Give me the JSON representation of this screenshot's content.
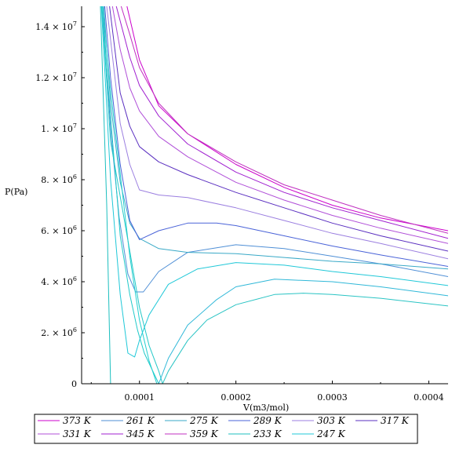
{
  "chart_data": {
    "type": "line",
    "title": "",
    "xlabel": "V(m3/mol)",
    "ylabel": "P(Pa)",
    "xlim": [
      4e-05,
      0.00042
    ],
    "ylim": [
      0,
      14800000
    ],
    "grid": false,
    "legend_position": "bottom",
    "x_ticks": [
      {
        "value": 0.0001,
        "label": "0.0001"
      },
      {
        "value": 0.0002,
        "label": "0.0002"
      },
      {
        "value": 0.0003,
        "label": "0.0003"
      },
      {
        "value": 0.0004,
        "label": "0.0004"
      }
    ],
    "y_ticks": [
      {
        "value": 0,
        "label": "0",
        "base": "",
        "exp": ""
      },
      {
        "value": 2000000,
        "label": "",
        "base": "2. × 10",
        "exp": "6"
      },
      {
        "value": 4000000,
        "label": "",
        "base": "4. × 10",
        "exp": "6"
      },
      {
        "value": 6000000,
        "label": "",
        "base": "6. × 10",
        "exp": "6"
      },
      {
        "value": 8000000,
        "label": "",
        "base": "8. × 10",
        "exp": "6"
      },
      {
        "value": 10000000,
        "label": "",
        "base": "1. × 10",
        "exp": "7"
      },
      {
        "value": 12000000,
        "label": "",
        "base": "1.2 × 10",
        "exp": "7"
      },
      {
        "value": 14000000,
        "label": "",
        "base": "1.4 × 10",
        "exp": "7"
      }
    ],
    "series": [
      {
        "name": "373 K",
        "color": "#cc00cc",
        "points": [
          [
            8.7e-05,
            14800000
          ],
          [
            0.0001,
            12700000
          ],
          [
            0.00012,
            10900000
          ],
          [
            0.00015,
            9800000
          ],
          [
            0.0002,
            8600000
          ],
          [
            0.00025,
            7700000
          ],
          [
            0.0003,
            7000000
          ],
          [
            0.00035,
            6500000
          ],
          [
            0.00042,
            6000000
          ]
        ]
      },
      {
        "name": "261 K",
        "color": "#4f8fd6",
        "points": [
          [
            6.2e-05,
            14800000
          ],
          [
            7e-05,
            10000000
          ],
          [
            7.9e-05,
            6500000
          ],
          [
            8.8e-05,
            4300000
          ],
          [
            9.6e-05,
            3600000
          ],
          [
            0.000104,
            3600000
          ],
          [
            0.00012,
            4400000
          ],
          [
            0.00015,
            5150000
          ],
          [
            0.0002,
            5450000
          ],
          [
            0.00025,
            5300000
          ],
          [
            0.0003,
            5000000
          ],
          [
            0.00035,
            4700000
          ],
          [
            0.00042,
            4200000
          ]
        ]
      },
      {
        "name": "275 K",
        "color": "#39a9c7",
        "points": [
          [
            6.3e-05,
            14800000
          ],
          [
            7e-05,
            11000000
          ],
          [
            8e-05,
            7900000
          ],
          [
            9e-05,
            6300000
          ],
          [
            0.0001,
            5700000
          ],
          [
            0.00012,
            5300000
          ],
          [
            0.00015,
            5150000
          ],
          [
            0.0002,
            5100000
          ],
          [
            0.00025,
            4950000
          ],
          [
            0.0003,
            4800000
          ],
          [
            0.00035,
            4700000
          ],
          [
            0.00042,
            4500000
          ]
        ]
      },
      {
        "name": "289 K",
        "color": "#4a63d8",
        "points": [
          [
            6.4e-05,
            14800000
          ],
          [
            7e-05,
            12000000
          ],
          [
            8e-05,
            8600000
          ],
          [
            9e-05,
            6400000
          ],
          [
            0.0001,
            5650000
          ],
          [
            0.00012,
            6000000
          ],
          [
            0.00015,
            6300000
          ],
          [
            0.00018,
            6300000
          ],
          [
            0.0002,
            6200000
          ],
          [
            0.00025,
            5800000
          ],
          [
            0.0003,
            5400000
          ],
          [
            0.00035,
            5050000
          ],
          [
            0.00042,
            4600000
          ]
        ]
      },
      {
        "name": "303 K",
        "color": "#9b7fe0",
        "points": [
          [
            6.6e-05,
            14800000
          ],
          [
            8e-05,
            10200000
          ],
          [
            9e-05,
            8600000
          ],
          [
            0.0001,
            7600000
          ],
          [
            0.00012,
            7400000
          ],
          [
            0.00015,
            7300000
          ],
          [
            0.0002,
            6900000
          ],
          [
            0.00025,
            6400000
          ],
          [
            0.0003,
            5900000
          ],
          [
            0.00035,
            5500000
          ],
          [
            0.00042,
            4900000
          ]
        ]
      },
      {
        "name": "317 K",
        "color": "#5a2fc0",
        "points": [
          [
            6.9e-05,
            14800000
          ],
          [
            8e-05,
            11400000
          ],
          [
            9e-05,
            10100000
          ],
          [
            0.0001,
            9300000
          ],
          [
            0.00012,
            8700000
          ],
          [
            0.00015,
            8200000
          ],
          [
            0.0002,
            7500000
          ],
          [
            0.00025,
            6900000
          ],
          [
            0.0003,
            6300000
          ],
          [
            0.00035,
            5800000
          ],
          [
            0.00042,
            5200000
          ]
        ]
      },
      {
        "name": "331 K",
        "color": "#b04fd8",
        "points": [
          [
            7.2e-05,
            14800000
          ],
          [
            8e-05,
            13100000
          ],
          [
            9e-05,
            11600000
          ],
          [
            0.0001,
            10700000
          ],
          [
            0.00012,
            9700000
          ],
          [
            0.00015,
            8900000
          ],
          [
            0.0002,
            7900000
          ],
          [
            0.00025,
            7200000
          ],
          [
            0.0003,
            6600000
          ],
          [
            0.00035,
            6100000
          ],
          [
            0.00042,
            5500000
          ]
        ]
      },
      {
        "name": "345 K",
        "color": "#a020d0",
        "points": [
          [
            7.6e-05,
            14800000
          ],
          [
            9e-05,
            12800000
          ],
          [
            0.0001,
            11700000
          ],
          [
            0.00012,
            10500000
          ],
          [
            0.00015,
            9400000
          ],
          [
            0.0002,
            8300000
          ],
          [
            0.00025,
            7500000
          ],
          [
            0.0003,
            6900000
          ],
          [
            0.00035,
            6400000
          ],
          [
            0.00042,
            5700000
          ]
        ]
      },
      {
        "name": "359 K",
        "color": "#c030c0",
        "points": [
          [
            8.1e-05,
            14800000
          ],
          [
            9e-05,
            13700000
          ],
          [
            0.0001,
            12400000
          ],
          [
            0.00012,
            11000000
          ],
          [
            0.00015,
            9800000
          ],
          [
            0.0002,
            8700000
          ],
          [
            0.00025,
            7800000
          ],
          [
            0.0003,
            7200000
          ],
          [
            0.00035,
            6600000
          ],
          [
            0.00042,
            5900000
          ]
        ]
      },
      {
        "name": "233 K",
        "color": "#1cbfbf",
        "points": [
          [
            5.95e-05,
            14800000
          ],
          [
            6.6e-05,
            7000000
          ],
          [
            7e-05,
            0
          ]
        ]
      },
      {
        "name": "247 K",
        "color": "#20c8d8",
        "points": [
          [
            6.05e-05,
            14800000
          ],
          [
            7e-05,
            8000000
          ],
          [
            8e-05,
            3500000
          ],
          [
            8.8e-05,
            1200000
          ],
          [
            9.5e-05,
            1050000
          ],
          [
            0.0001,
            1700000
          ],
          [
            0.00011,
            2700000
          ],
          [
            0.00013,
            3900000
          ],
          [
            0.00016,
            4500000
          ],
          [
            0.0002,
            4750000
          ],
          [
            0.00025,
            4650000
          ],
          [
            0.0003,
            4400000
          ],
          [
            0.00035,
            4200000
          ],
          [
            0.00042,
            3850000
          ]
        ]
      },
      {
        "name": "",
        "color": "#1fc9c9",
        "points": [
          [
            6.1e-05,
            14800000
          ],
          [
            7e-05,
            10500000
          ],
          [
            8e-05,
            5800000
          ],
          [
            9e-05,
            3500000
          ],
          [
            9.8e-05,
            2100000
          ],
          [
            0.000105,
            1200000
          ],
          [
            0.00012,
            0
          ]
        ]
      },
      {
        "name": "",
        "color": "#22d0d0",
        "points": [
          [
            6.2e-05,
            14800000
          ],
          [
            7e-05,
            11500000
          ],
          [
            9e-05,
            5000000
          ],
          [
            0.0001,
            2500000
          ],
          [
            0.00011,
            900000
          ],
          [
            0.000118,
            0
          ]
        ]
      },
      {
        "name": "",
        "color": "#25c8c8",
        "points": [
          [
            6.1e-05,
            14800000
          ],
          [
            7e-05,
            9500000
          ],
          [
            9e-05,
            5200000
          ],
          [
            0.0001,
            3000000
          ],
          [
            0.00011,
            1500000
          ],
          [
            0.00012,
            500000
          ],
          [
            0.000124,
            0
          ]
        ]
      },
      {
        "name": "",
        "color": "#2ac4c4",
        "points": [
          [
            7.1e-05,
            0
          ],
          [
            0.0001,
            0
          ],
          [
            0.000124,
            0
          ],
          [
            0.00013,
            500000
          ],
          [
            0.00015,
            1700000
          ],
          [
            0.00017,
            2500000
          ],
          [
            0.0002,
            3100000
          ],
          [
            0.00024,
            3500000
          ],
          [
            0.00027,
            3550000
          ],
          [
            0.0003,
            3500000
          ],
          [
            0.00035,
            3350000
          ],
          [
            0.00042,
            3050000
          ]
        ]
      },
      {
        "name": "",
        "color": "#30b8d8",
        "points": [
          [
            0.00012,
            0
          ],
          [
            0.00013,
            1000000
          ],
          [
            0.00015,
            2300000
          ],
          [
            0.00018,
            3300000
          ],
          [
            0.0002,
            3800000
          ],
          [
            0.00024,
            4100000
          ],
          [
            0.0003,
            4000000
          ],
          [
            0.00035,
            3800000
          ],
          [
            0.00042,
            3450000
          ]
        ]
      }
    ],
    "legend": {
      "rows": [
        [
          "373 K",
          "261 K",
          "275 K",
          "289 K",
          "303 K",
          "317 K"
        ],
        [
          "331 K",
          "345 K",
          "359 K",
          "233 K",
          "247 K"
        ]
      ]
    }
  }
}
